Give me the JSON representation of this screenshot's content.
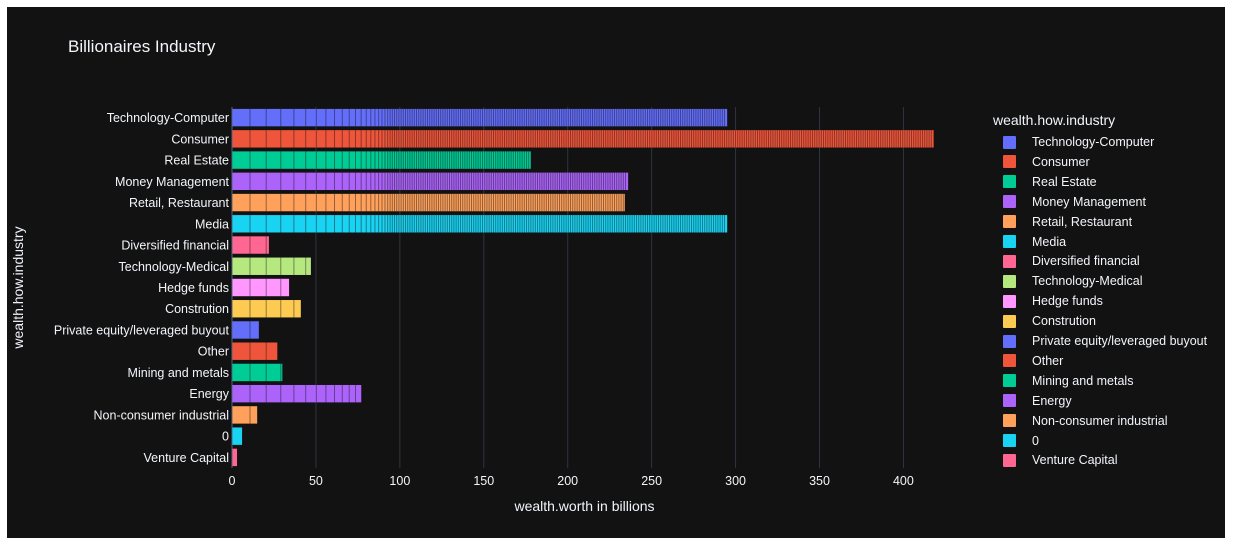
{
  "chart_data": {
    "type": "bar",
    "orientation": "horizontal",
    "stacked": true,
    "title": "Billionaires Industry",
    "xlabel": "wealth.worth in billions",
    "ylabel": "wealth.how.industry",
    "xlim": [
      0,
      420
    ],
    "x_ticks": [
      "0",
      "50",
      "100",
      "150",
      "200",
      "250",
      "300",
      "350",
      "400"
    ],
    "grid": true,
    "legend_title": "wealth.how.industry",
    "legend_position": "right",
    "categories": [
      "Technology-Computer",
      "Consumer",
      "Real Estate",
      "Money Management",
      "Retail, Restaurant",
      "Media",
      "Diversified financial",
      "Technology-Medical",
      "Hedge funds",
      "Constrution",
      "Private equity/leveraged buyout",
      "Other",
      "Mining and metals",
      "Energy",
      "Non-consumer industrial",
      "0",
      "Venture Capital"
    ],
    "series": [
      {
        "name": "Technology-Computer",
        "color": "#636efa",
        "value": 295
      },
      {
        "name": "Consumer",
        "color": "#ef553b",
        "value": 418
      },
      {
        "name": "Real Estate",
        "color": "#00cc96",
        "value": 178
      },
      {
        "name": "Money Management",
        "color": "#ab63fa",
        "value": 236
      },
      {
        "name": "Retail, Restaurant",
        "color": "#ffa15a",
        "value": 234
      },
      {
        "name": "Media",
        "color": "#19d3f3",
        "value": 295
      },
      {
        "name": "Diversified financial",
        "color": "#ff6692",
        "value": 22
      },
      {
        "name": "Technology-Medical",
        "color": "#b6e880",
        "value": 47
      },
      {
        "name": "Hedge funds",
        "color": "#ff97ff",
        "value": 34
      },
      {
        "name": "Constrution",
        "color": "#fecb52",
        "value": 41
      },
      {
        "name": "Private equity/leveraged buyout",
        "color": "#636efa",
        "value": 16
      },
      {
        "name": "Other",
        "color": "#ef553b",
        "value": 27
      },
      {
        "name": "Mining and metals",
        "color": "#00cc96",
        "value": 30
      },
      {
        "name": "Energy",
        "color": "#ab63fa",
        "value": 77
      },
      {
        "name": "Non-consumer industrial",
        "color": "#ffa15a",
        "value": 15
      },
      {
        "name": "0",
        "color": "#19d3f3",
        "value": 6
      },
      {
        "name": "Venture Capital",
        "color": "#ff6692",
        "value": 3
      }
    ]
  }
}
